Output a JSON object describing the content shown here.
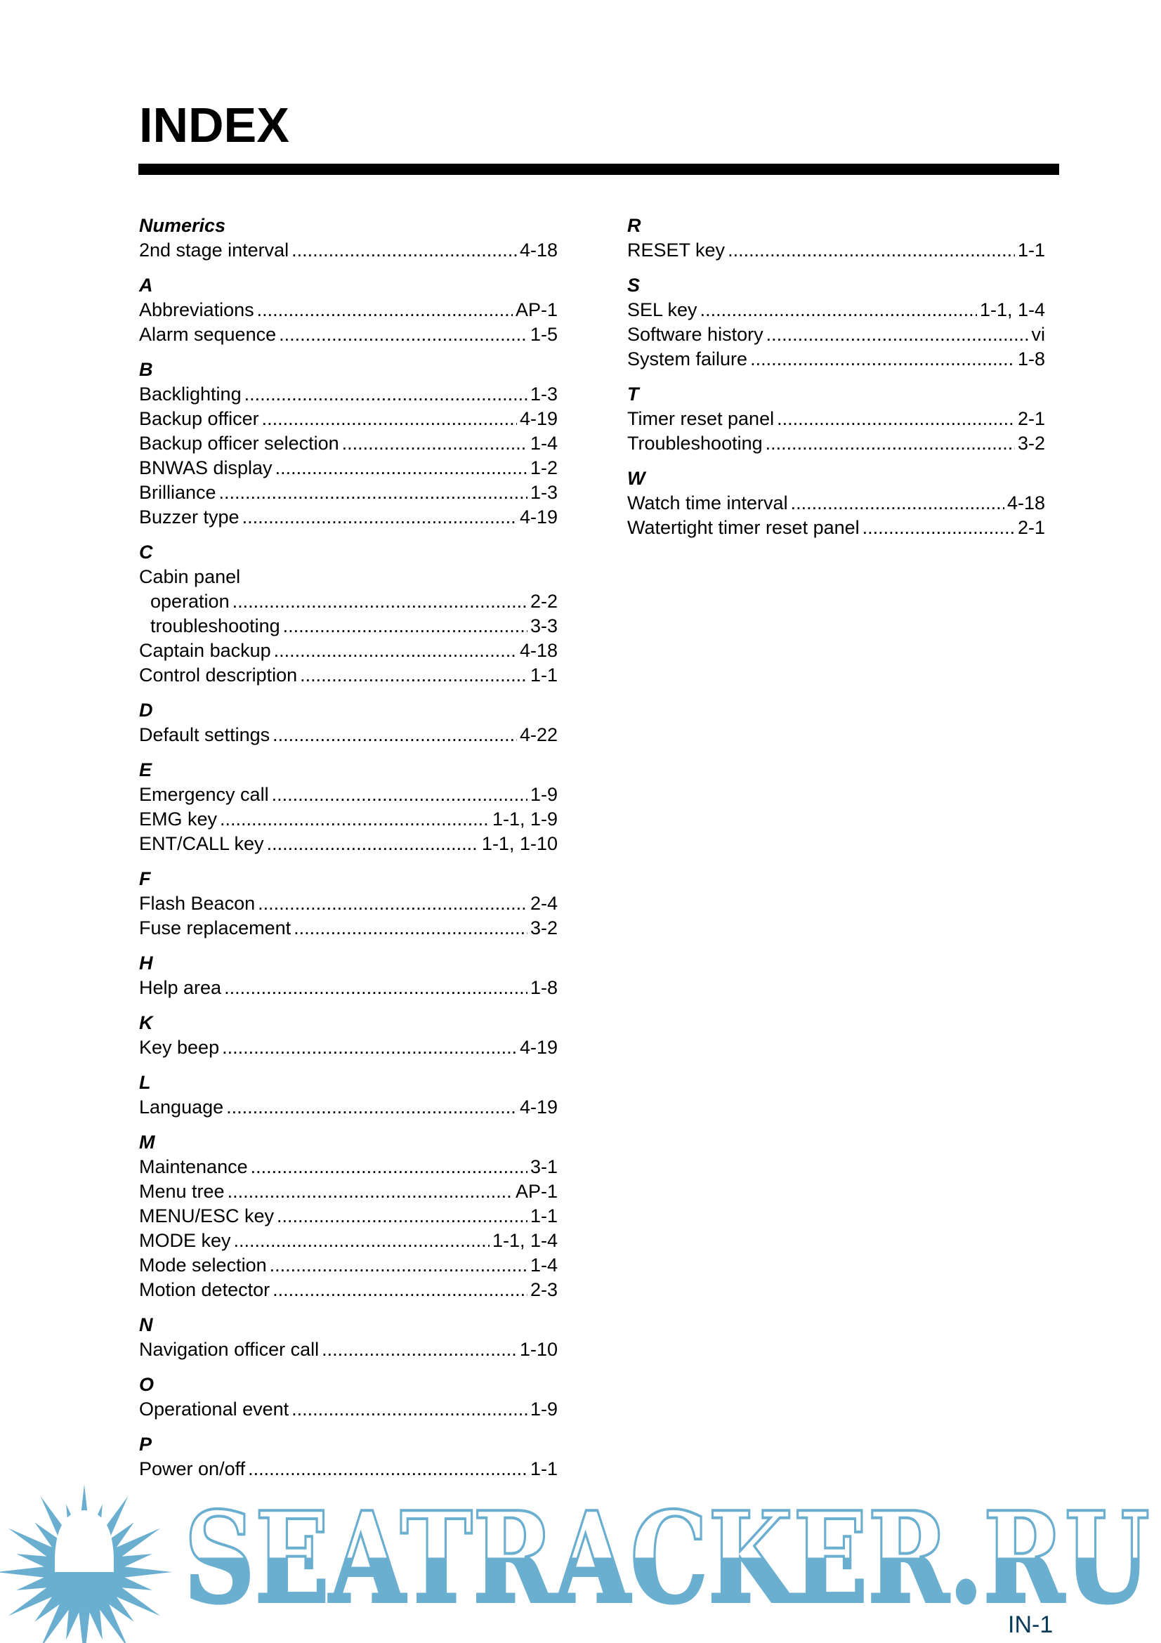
{
  "title": "INDEX",
  "page_number": "IN-1",
  "watermark": {
    "text": "SEATRACKER.RU",
    "color": "#6aaed0"
  },
  "left_column": [
    {
      "letter": "Numerics",
      "entries": [
        {
          "term": "2nd stage interval",
          "page": "4-18"
        }
      ]
    },
    {
      "letter": "A",
      "entries": [
        {
          "term": "Abbreviations",
          "page": "AP-1"
        },
        {
          "term": "Alarm sequence",
          "page": "1-5"
        }
      ]
    },
    {
      "letter": "B",
      "entries": [
        {
          "term": "Backlighting",
          "page": "1-3"
        },
        {
          "term": "Backup officer",
          "page": "4-19"
        },
        {
          "term": "Backup officer selection",
          "page": "1-4"
        },
        {
          "term": "BNWAS display",
          "page": "1-2"
        },
        {
          "term": "Brilliance",
          "page": "1-3"
        },
        {
          "term": "Buzzer type",
          "page": "4-19"
        }
      ]
    },
    {
      "letter": "C",
      "entries": [
        {
          "term": "Cabin panel",
          "page": ""
        },
        {
          "term": "operation",
          "page": "2-2",
          "sub": true
        },
        {
          "term": "troubleshooting",
          "page": "3-3",
          "sub": true
        },
        {
          "term": "Captain backup",
          "page": "4-18"
        },
        {
          "term": "Control description",
          "page": "1-1"
        }
      ]
    },
    {
      "letter": "D",
      "entries": [
        {
          "term": "Default settings",
          "page": "4-22"
        }
      ]
    },
    {
      "letter": "E",
      "entries": [
        {
          "term": "Emergency call",
          "page": "1-9"
        },
        {
          "term": "EMG key",
          "page": "1-1, 1-9"
        },
        {
          "term": "ENT/CALL key",
          "page": "1-1, 1-10"
        }
      ]
    },
    {
      "letter": "F",
      "entries": [
        {
          "term": "Flash Beacon",
          "page": "2-4"
        },
        {
          "term": "Fuse replacement",
          "page": "3-2"
        }
      ]
    },
    {
      "letter": "H",
      "entries": [
        {
          "term": "Help area",
          "page": "1-8"
        }
      ]
    },
    {
      "letter": "K",
      "entries": [
        {
          "term": "Key beep",
          "page": "4-19"
        }
      ]
    },
    {
      "letter": "L",
      "entries": [
        {
          "term": "Language",
          "page": "4-19"
        }
      ]
    },
    {
      "letter": "M",
      "entries": [
        {
          "term": "Maintenance",
          "page": "3-1"
        },
        {
          "term": "Menu tree",
          "page": "AP-1"
        },
        {
          "term": "MENU/ESC key",
          "page": "1-1"
        },
        {
          "term": "MODE key",
          "page": "1-1, 1-4"
        },
        {
          "term": "Mode selection",
          "page": "1-4"
        },
        {
          "term": "Motion detector",
          "page": "2-3"
        }
      ]
    },
    {
      "letter": "N",
      "entries": [
        {
          "term": "Navigation officer call",
          "page": "1-10"
        }
      ]
    },
    {
      "letter": "O",
      "entries": [
        {
          "term": "Operational event",
          "page": "1-9"
        }
      ]
    },
    {
      "letter": "P",
      "entries": [
        {
          "term": "Power on/off",
          "page": "1-1"
        }
      ]
    }
  ],
  "right_column": [
    {
      "letter": "R",
      "entries": [
        {
          "term": "RESET key",
          "page": "1-1"
        }
      ]
    },
    {
      "letter": "S",
      "entries": [
        {
          "term": "SEL key",
          "page": "1-1, 1-4"
        },
        {
          "term": "Software history",
          "page": "vi"
        },
        {
          "term": "System failure",
          "page": "1-8"
        }
      ]
    },
    {
      "letter": "T",
      "entries": [
        {
          "term": "Timer reset panel",
          "page": "2-1"
        },
        {
          "term": "Troubleshooting",
          "page": "3-2"
        }
      ]
    },
    {
      "letter": "W",
      "entries": [
        {
          "term": "Watch time interval",
          "page": "4-18"
        },
        {
          "term": "Watertight timer reset panel",
          "page": "2-1"
        }
      ]
    }
  ]
}
